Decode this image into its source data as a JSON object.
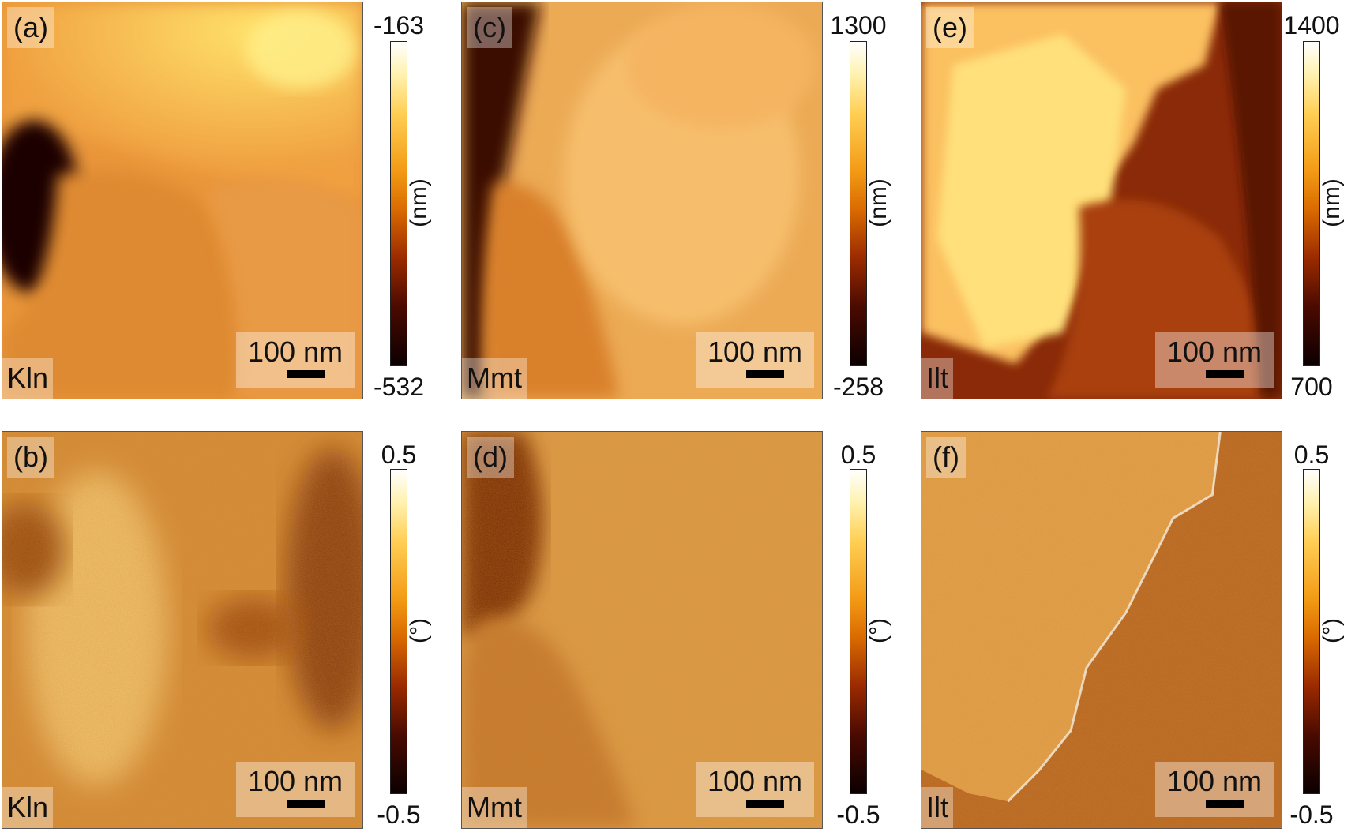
{
  "panels": [
    {
      "id": "a",
      "label": "(a)",
      "mineral": "Kln",
      "scale": "100 nm",
      "cb_max": "-163",
      "cb_min": "-532",
      "unit": "(nm)"
    },
    {
      "id": "b",
      "label": "(b)",
      "mineral": "Kln",
      "scale": "100 nm",
      "cb_max": "0.5",
      "cb_min": "-0.5",
      "unit": "(°)"
    },
    {
      "id": "c",
      "label": "(c)",
      "mineral": "Mmt",
      "scale": "100 nm",
      "cb_max": "1300",
      "cb_min": "-258",
      "unit": "(nm)"
    },
    {
      "id": "d",
      "label": "(d)",
      "mineral": "Mmt",
      "scale": "100 nm",
      "cb_max": "0.5",
      "cb_min": "-0.5",
      "unit": "(°)"
    },
    {
      "id": "e",
      "label": "(e)",
      "mineral": "Ilt",
      "scale": "100 nm",
      "cb_max": "1400",
      "cb_min": "700",
      "unit": "(nm)"
    },
    {
      "id": "f",
      "label": "(f)",
      "mineral": "Ilt",
      "scale": "100 nm",
      "cb_max": "0.5",
      "cb_min": "-0.5",
      "unit": "(°)"
    }
  ],
  "colors": {
    "dark": "#1a0000",
    "mid": "#c86a18",
    "bright": "#ffe07a"
  }
}
